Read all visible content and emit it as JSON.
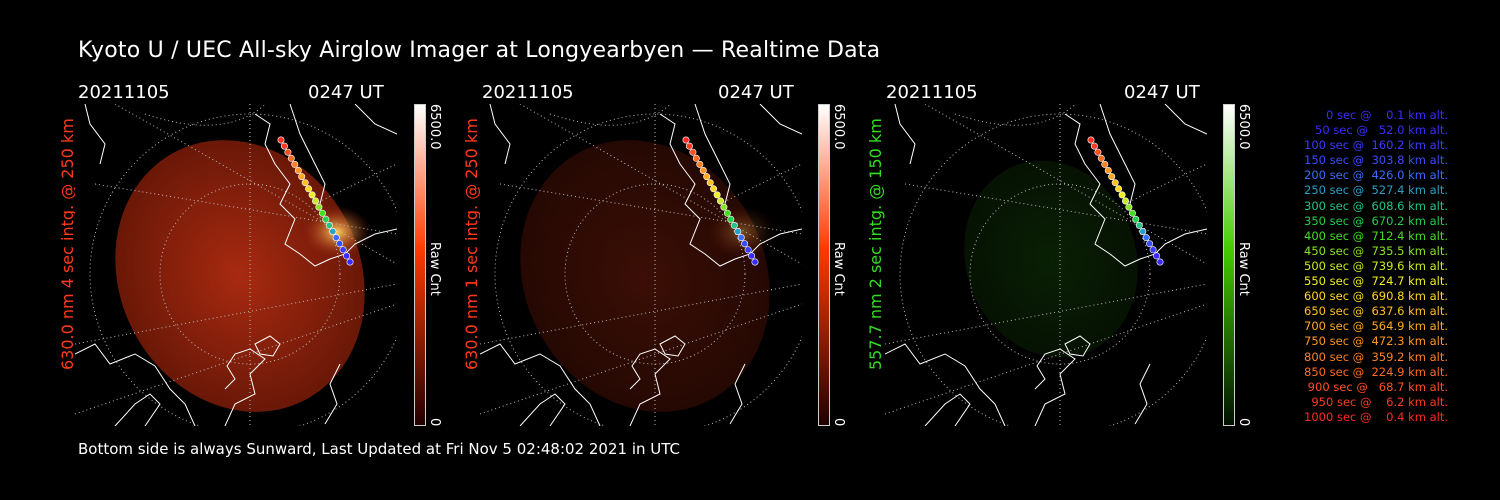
{
  "title": "Kyoto U / UEC All-sky Airglow Imager at Longyearbyen — Realtime Data",
  "footer": "Bottom side is always Sunward, Last Updated at Fri Nov  5 02:48:02 2021 in UTC",
  "panels": [
    {
      "date": "20211105",
      "time": "0247 UT",
      "side_label": "630.0 nm 4 sec intg. @ 250 km",
      "side_color": "#ff3a1a",
      "cbar_max": "6500.0",
      "cbar_min": "0",
      "cbar_unit": "Raw Cnt",
      "intensity": 1.0,
      "cbar_color": "#ff3a00"
    },
    {
      "date": "20211105",
      "time": "0247 UT",
      "side_label": "630.0 nm 1 sec intg. @ 250 km",
      "side_color": "#ff3a1a",
      "cbar_max": "6500.0",
      "cbar_min": "0",
      "cbar_unit": "Raw Cnt",
      "intensity": 0.35,
      "cbar_color": "#ff3a00"
    },
    {
      "date": "20211105",
      "time": "0247 UT",
      "side_label": "557.7 nm 2 sec intg. @ 150 km",
      "side_color": "#33dd22",
      "cbar_max": "6500.0",
      "cbar_min": "0",
      "cbar_unit": "Raw Cnt",
      "intensity": 0.3,
      "cbar_color": "#44cc00"
    }
  ],
  "legend": [
    {
      "text": "   0 sec @    0.1 km alt.",
      "color": "#3a2cff"
    },
    {
      "text": "  50 sec @   52.0 km alt.",
      "color": "#3a2cff"
    },
    {
      "text": " 100 sec @  160.2 km alt.",
      "color": "#3a3cff"
    },
    {
      "text": " 150 sec @  303.8 km alt.",
      "color": "#3a4cff"
    },
    {
      "text": " 200 sec @  426.0 km alt.",
      "color": "#3a6cff"
    },
    {
      "text": " 250 sec @  527.4 km alt.",
      "color": "#2aa0c8"
    },
    {
      "text": " 300 sec @  608.6 km alt.",
      "color": "#22c488"
    },
    {
      "text": " 350 sec @  670.2 km alt.",
      "color": "#22d04a"
    },
    {
      "text": " 400 sec @  712.4 km alt.",
      "color": "#44dd22"
    },
    {
      "text": " 450 sec @  735.5 km alt.",
      "color": "#88e322"
    },
    {
      "text": " 500 sec @  739.6 km alt.",
      "color": "#c8ec22"
    },
    {
      "text": " 550 sec @  724.7 km alt.",
      "color": "#eef022"
    },
    {
      "text": " 600 sec @  690.8 km alt.",
      "color": "#ffd822"
    },
    {
      "text": " 650 sec @  637.6 km alt.",
      "color": "#ffc022"
    },
    {
      "text": " 700 sec @  564.9 km alt.",
      "color": "#ffaa22"
    },
    {
      "text": " 750 sec @  472.3 km alt.",
      "color": "#ff9622"
    },
    {
      "text": " 800 sec @  359.2 km alt.",
      "color": "#ff8022"
    },
    {
      "text": " 850 sec @  224.9 km alt.",
      "color": "#ff6a22"
    },
    {
      "text": " 900 sec @   68.7 km alt.",
      "color": "#ff5022"
    },
    {
      "text": " 950 sec @    6.2 km alt.",
      "color": "#ff3a22"
    },
    {
      "text": "1000 sec @    0.4 km alt.",
      "color": "#ff2a22"
    }
  ]
}
